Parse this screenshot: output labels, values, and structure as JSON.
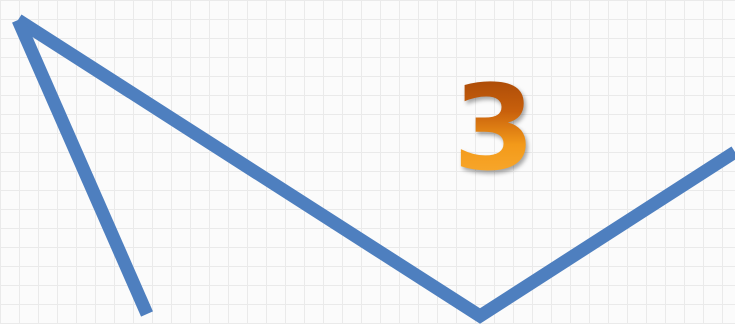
{
  "canvas": {
    "grid": true,
    "background_color": "#fbfbfb",
    "grid_color": "#eaeaea"
  },
  "shapes": {
    "stroke_color": "#4e7fbf",
    "items": [
      {
        "name": "zigzag-line"
      },
      {
        "name": "side-line"
      }
    ]
  },
  "badge": {
    "number": "3",
    "colors": {
      "top": "#9a3e05",
      "bottom": "#fbb23a"
    }
  }
}
